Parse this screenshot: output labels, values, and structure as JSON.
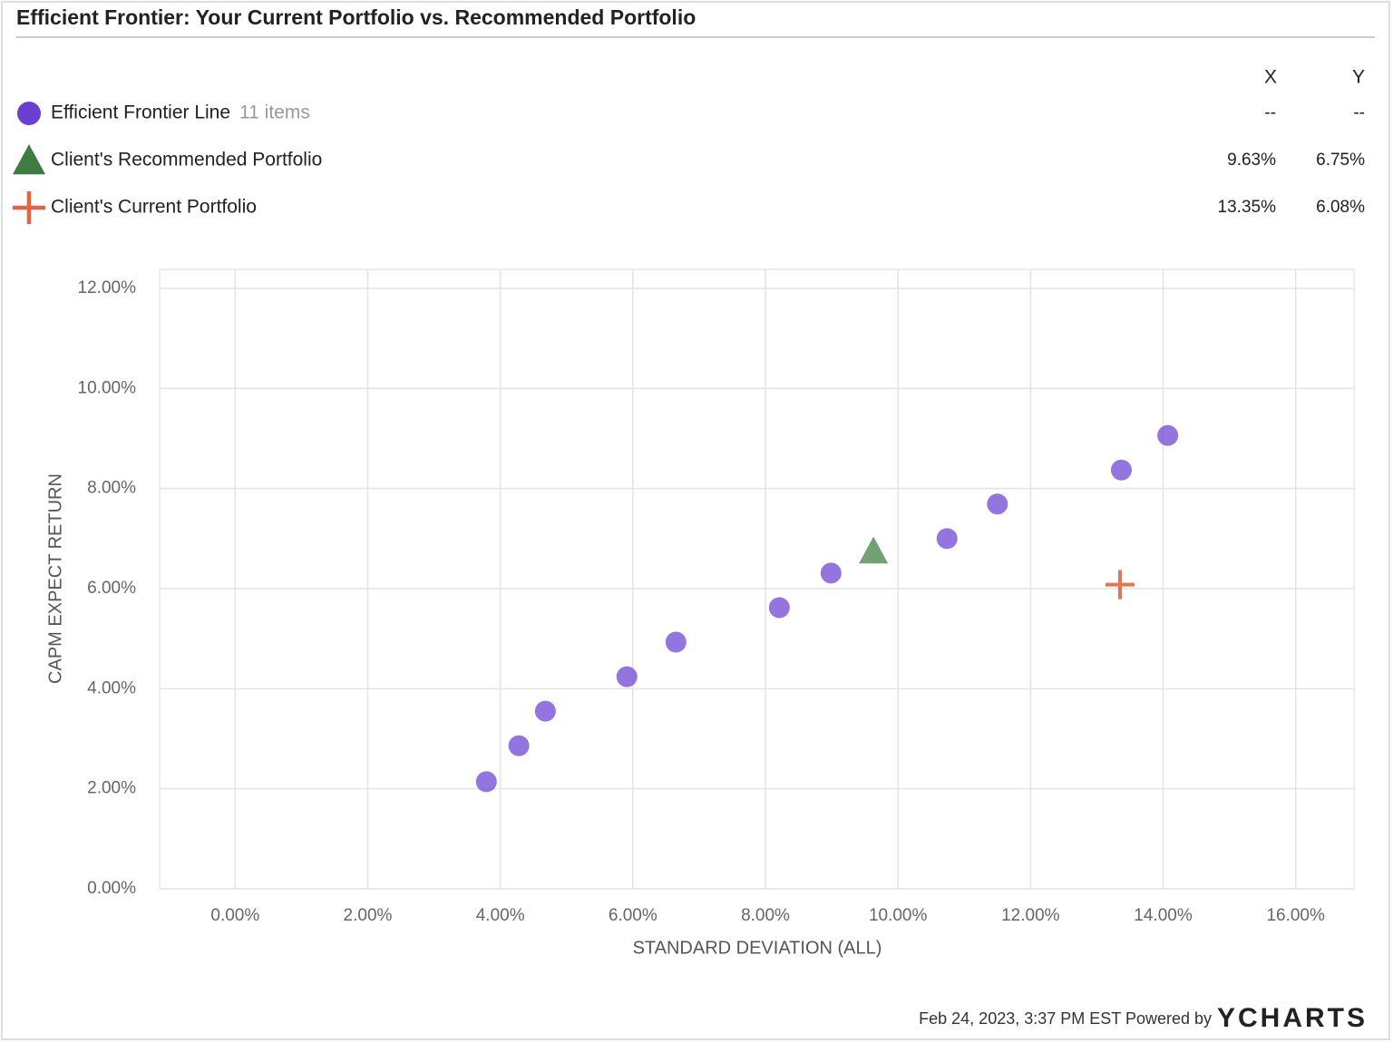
{
  "chart_data": {
    "type": "scatter",
    "title": "Efficient Frontier: Your Current Portfolio vs. Recommended Portfolio",
    "legend_columns": [
      "X",
      "Y"
    ],
    "xlabel": "STANDARD DEVIATION (ALL)",
    "ylabel": "CAPM EXPECT RETURN",
    "xlim": [
      -1.14,
      16.88
    ],
    "ylim": [
      0,
      12.38
    ],
    "xticks": [
      {
        "value": 0,
        "label": "0.00%"
      },
      {
        "value": 2,
        "label": "2.00%"
      },
      {
        "value": 4,
        "label": "4.00%"
      },
      {
        "value": 6,
        "label": "6.00%"
      },
      {
        "value": 8,
        "label": "8.00%"
      },
      {
        "value": 10,
        "label": "10.00%"
      },
      {
        "value": 12,
        "label": "12.00%"
      },
      {
        "value": 14,
        "label": "14.00%"
      },
      {
        "value": 16,
        "label": "16.00%"
      }
    ],
    "yticks": [
      {
        "value": 0,
        "label": "0.00%"
      },
      {
        "value": 2,
        "label": "2.00%"
      },
      {
        "value": 4,
        "label": "4.00%"
      },
      {
        "value": 6,
        "label": "6.00%"
      },
      {
        "value": 8,
        "label": "8.00%"
      },
      {
        "value": 10,
        "label": "10.00%"
      },
      {
        "value": 12,
        "label": "12.00%"
      }
    ],
    "grid": true,
    "series": [
      {
        "name": "Efficient Frontier Line",
        "count_label": "11 items",
        "marker": "circle",
        "color": "#6b3fd2",
        "table_values": [
          "--",
          "--"
        ],
        "x": [
          3.79,
          4.28,
          4.68,
          5.91,
          6.65,
          8.21,
          8.99,
          10.74,
          11.5,
          13.37,
          14.07
        ],
        "values": [
          2.14,
          2.86,
          3.55,
          4.24,
          4.93,
          5.62,
          6.31,
          7.0,
          7.69,
          8.37,
          9.06
        ]
      },
      {
        "name": "Client's Recommended Portfolio",
        "marker": "triangle",
        "color": "#3e7c40",
        "x": [
          9.63
        ],
        "x_labels": [
          "9.63%"
        ],
        "values": [
          6.75
        ],
        "value_labels": [
          "6.75%"
        ]
      },
      {
        "name": "Client's Current Portfolio",
        "marker": "cross",
        "color": "#e2653f",
        "x": [
          13.35
        ],
        "x_labels": [
          "13.35%"
        ],
        "values": [
          6.08
        ],
        "value_labels": [
          "6.08%"
        ]
      }
    ],
    "footer": "Feb 24, 2023, 3:37 PM EST Powered by",
    "brand": "YCHARTS"
  }
}
